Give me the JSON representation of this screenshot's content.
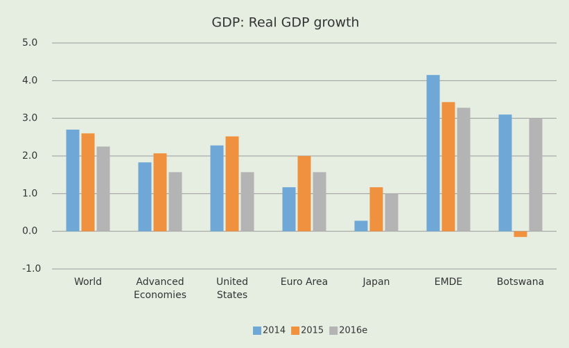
{
  "chart_data": {
    "type": "bar",
    "title": "GDP: Real GDP growth",
    "categories": [
      "World",
      "Advanced Economies",
      "United States",
      "Euro Area",
      "Japan",
      "EMDE",
      "Botswana"
    ],
    "series": [
      {
        "name": "2014",
        "color": "#6fa8d6",
        "values": [
          2.7,
          1.83,
          2.28,
          1.17,
          0.28,
          4.15,
          3.1
        ]
      },
      {
        "name": "2015",
        "color": "#f0913f",
        "values": [
          2.6,
          2.07,
          2.52,
          2.0,
          1.17,
          3.43,
          -0.15
        ]
      },
      {
        "name": "2016e",
        "color": "#b4b4b4",
        "values": [
          2.25,
          1.57,
          1.57,
          1.57,
          1.0,
          3.28,
          3.0
        ]
      }
    ],
    "ylim": [
      -1,
      5
    ],
    "yticks": [
      {
        "value": -1,
        "label": "-1.0"
      },
      {
        "value": 0,
        "label": "0.0"
      },
      {
        "value": 1,
        "label": "1.0"
      },
      {
        "value": 2,
        "label": "2.0"
      },
      {
        "value": 3,
        "label": "3.0"
      },
      {
        "value": 4,
        "label": "4.0"
      },
      {
        "value": 5,
        "label": "5.0"
      }
    ],
    "grid": true,
    "legend": "bottom"
  }
}
